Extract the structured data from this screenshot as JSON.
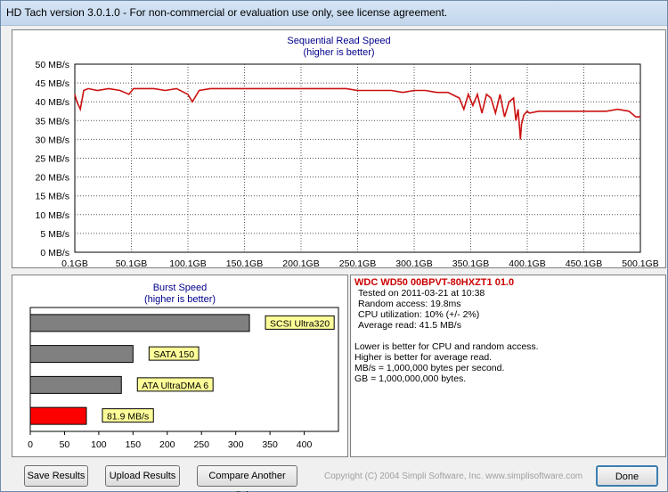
{
  "window": {
    "title": "HD Tach version 3.0.1.0  - For non-commercial or evaluation use only, see license agreement."
  },
  "read_chart": {
    "title": "Sequential Read Speed",
    "subtitle": "(higher is better)",
    "y_ticks": [
      "50 MB/s",
      "45 MB/s",
      "40 MB/s",
      "35 MB/s",
      "30 MB/s",
      "25 MB/s",
      "20 MB/s",
      "15 MB/s",
      "10 MB/s",
      "5 MB/s",
      "0 MB/s"
    ],
    "x_ticks": [
      "0.1GB",
      "50.1GB",
      "100.1GB",
      "150.1GB",
      "200.1GB",
      "250.1GB",
      "300.1GB",
      "350.1GB",
      "400.1GB",
      "450.1GB",
      "500.1GB"
    ],
    "line_color": "#cc1111"
  },
  "burst_chart": {
    "title": "Burst Speed",
    "subtitle": "(higher is better)",
    "x_ticks": [
      "0",
      "50",
      "100",
      "150",
      "200",
      "250",
      "300",
      "350",
      "400"
    ],
    "bar_color_ref": "#808080",
    "bar_color_drive": "#ff0000",
    "label_bg": "#ffff99"
  },
  "chart_data": [
    {
      "type": "line",
      "title": "Sequential Read Speed",
      "subtitle": "(higher is better)",
      "xlabel": "",
      "ylabel": "",
      "xlim": [
        0.1,
        500.1
      ],
      "ylim": [
        0,
        50
      ],
      "grid": true,
      "series": [
        {
          "x": [
            0.1,
            2,
            5,
            8,
            12,
            20,
            30,
            40,
            48,
            52,
            60,
            70,
            80,
            90,
            100,
            104,
            110,
            120,
            130,
            140,
            150,
            160,
            170,
            180,
            190,
            200,
            210,
            220,
            230,
            240,
            250,
            260,
            270,
            280,
            290,
            300,
            310,
            320,
            330,
            340,
            344,
            348,
            352,
            356,
            360,
            364,
            368,
            372,
            376,
            380,
            384,
            388,
            390,
            392,
            394,
            395,
            397,
            400,
            402,
            410,
            420,
            430,
            440,
            450,
            460,
            470,
            480,
            490,
            496,
            500.1
          ],
          "y": [
            42,
            40,
            38,
            43,
            43.5,
            43,
            43.5,
            43,
            42,
            43.5,
            43.5,
            43.5,
            43,
            43.5,
            42,
            40,
            43,
            43.5,
            43.5,
            43.5,
            43.5,
            43.5,
            43.5,
            43.5,
            43.5,
            43.5,
            43.5,
            43.5,
            43.5,
            43.5,
            43,
            43,
            43,
            43,
            42.5,
            43,
            43,
            42.5,
            42.5,
            41,
            38,
            42,
            39,
            42,
            37,
            42,
            41,
            37,
            42,
            36,
            40,
            41,
            35,
            38,
            30,
            34,
            36.5,
            37.5,
            37,
            37.5,
            37.5,
            37.5,
            37.5,
            37.5,
            37.5,
            37.5,
            38,
            37.5,
            36,
            36
          ],
          "color": "#cc1111"
        }
      ]
    },
    {
      "type": "bar",
      "title": "Burst Speed",
      "subtitle": "(higher is better)",
      "orientation": "horizontal",
      "categories": [
        "SCSI Ultra320",
        "SATA 150",
        "ATA UltraDMA 6",
        "81.9 MB/s"
      ],
      "values": [
        320,
        150,
        133,
        81.9
      ],
      "colors": [
        "#808080",
        "#808080",
        "#808080",
        "#ff0000"
      ],
      "xlim": [
        0,
        450
      ],
      "grid": false
    }
  ],
  "info": {
    "drive_name": "WDC WD50 00BPVT-80HXZT1 01.0",
    "tested_on": "Tested on 2011-03-21 at 10:38",
    "random_access": "Random access: 19.8ms",
    "cpu_util": "CPU utilization: 10% (+/- 2%)",
    "avg_read": "Average read: 41.5 MB/s",
    "note1": "Lower is better for CPU and random access.",
    "note2": "Higher is better for average read.",
    "note3": "MB/s = 1,000,000 bytes per second.",
    "note4": "GB = 1,000,000,000 bytes."
  },
  "buttons": {
    "save": "Save Results",
    "upload": "Upload Results",
    "compare": "Compare Another Drive",
    "done": "Done"
  },
  "copyright": "Copyright (C) 2004 Simpli Software, Inc. www.simplisoftware.com"
}
